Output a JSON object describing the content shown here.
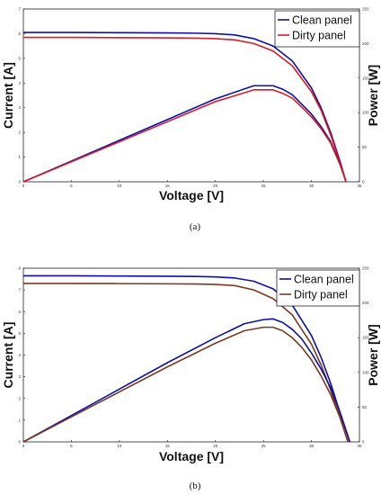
{
  "chart_data": [
    {
      "type": "line",
      "subplot_label": "(a)",
      "xlabel": "Voltage [V]",
      "ylabel": "Current [A]",
      "y2label": "Power [W]",
      "xlim": [
        0,
        35
      ],
      "ylim": [
        0,
        7
      ],
      "y2lim": [
        0,
        250
      ],
      "xticks": [
        "0",
        "5",
        "10",
        "15",
        "20",
        "25",
        "30",
        "35"
      ],
      "yticks": [
        "0",
        "1",
        "2",
        "3",
        "4",
        "5",
        "6",
        "7"
      ],
      "y2ticks": [
        "0",
        "50",
        "100",
        "150",
        "200",
        "250"
      ],
      "legend_position": "top-right",
      "series": [
        {
          "name": "Clean panel",
          "color": "#1010a0",
          "axis": "left",
          "quantity": "current",
          "x": [
            0,
            5,
            10,
            15,
            18,
            20,
            22,
            24,
            26,
            28,
            30,
            31,
            32,
            33,
            33.6
          ],
          "y": [
            6.05,
            6.05,
            6.04,
            6.03,
            6.02,
            6.0,
            5.95,
            5.8,
            5.5,
            4.9,
            3.8,
            3.0,
            2.0,
            0.8,
            0
          ]
        },
        {
          "name": "Dirty panel",
          "color": "#d81b2a",
          "axis": "left",
          "quantity": "current",
          "x": [
            0,
            5,
            10,
            15,
            18,
            20,
            22,
            24,
            26,
            28,
            30,
            31,
            32,
            33,
            33.6
          ],
          "y": [
            5.85,
            5.85,
            5.84,
            5.83,
            5.82,
            5.8,
            5.75,
            5.6,
            5.3,
            4.7,
            3.65,
            2.9,
            1.9,
            0.75,
            0
          ]
        },
        {
          "name": "Clean panel",
          "color": "#1010a0",
          "axis": "right",
          "quantity": "power",
          "x": [
            0,
            5,
            10,
            15,
            20,
            24,
            26,
            27,
            28,
            29,
            30,
            31,
            32,
            33,
            33.6
          ],
          "y": [
            0,
            30,
            60,
            90,
            120,
            139,
            139,
            134,
            126,
            112,
            98,
            80,
            58,
            25,
            0
          ]
        },
        {
          "name": "Dirty panel",
          "color": "#d81b2a",
          "axis": "right",
          "quantity": "power",
          "x": [
            0,
            5,
            10,
            15,
            20,
            24,
            26,
            27,
            28,
            29,
            30,
            31,
            32,
            33,
            33.6
          ],
          "y": [
            0,
            29,
            58,
            87,
            116,
            133,
            133,
            128,
            121,
            108,
            94,
            77,
            56,
            24,
            0
          ]
        }
      ]
    },
    {
      "type": "line",
      "subplot_label": "(b)",
      "xlabel": "Voltage [V]",
      "ylabel": "Current [A]",
      "y2label": "Power [W]",
      "xlim": [
        0,
        35
      ],
      "ylim": [
        0,
        8
      ],
      "y2lim": [
        0,
        250
      ],
      "xticks": [
        "0",
        "5",
        "10",
        "15",
        "20",
        "25",
        "30",
        "35"
      ],
      "yticks": [
        "0",
        "1",
        "2",
        "3",
        "4",
        "5",
        "6",
        "7",
        "8"
      ],
      "y2ticks": [
        "0",
        "50",
        "100",
        "150",
        "200",
        "250"
      ],
      "legend_position": "top-right",
      "series": [
        {
          "name": "Clean panel",
          "color": "#1010a0",
          "axis": "left",
          "quantity": "current",
          "x": [
            0,
            5,
            10,
            15,
            18,
            20,
            22,
            24,
            26,
            28,
            30,
            31,
            32,
            33,
            34
          ],
          "y": [
            7.65,
            7.65,
            7.64,
            7.63,
            7.62,
            7.6,
            7.55,
            7.4,
            7.05,
            6.3,
            4.9,
            3.9,
            2.7,
            1.3,
            0
          ]
        },
        {
          "name": "Dirty panel",
          "color": "#7a3a22",
          "axis": "left",
          "quantity": "current",
          "x": [
            0,
            5,
            10,
            15,
            18,
            20,
            22,
            24,
            26,
            28,
            30,
            31,
            32,
            33,
            33.8
          ],
          "y": [
            7.3,
            7.3,
            7.29,
            7.28,
            7.27,
            7.25,
            7.2,
            7.0,
            6.6,
            5.85,
            4.5,
            3.55,
            2.4,
            1.1,
            0
          ]
        },
        {
          "name": "Clean panel",
          "color": "#1010a0",
          "axis": "right",
          "quantity": "power",
          "x": [
            0,
            5,
            10,
            15,
            20,
            23,
            25,
            26,
            27,
            28,
            29,
            30,
            31,
            32,
            33,
            34
          ],
          "y": [
            0,
            38,
            76,
            114,
            150,
            170,
            176,
            177,
            172,
            162,
            148,
            128,
            105,
            78,
            42,
            0
          ]
        },
        {
          "name": "Dirty panel",
          "color": "#7a3a22",
          "axis": "right",
          "quantity": "power",
          "x": [
            0,
            5,
            10,
            15,
            20,
            23,
            25,
            26,
            27,
            28,
            29,
            30,
            31,
            32,
            33,
            33.8
          ],
          "y": [
            0,
            36,
            72,
            108,
            142,
            160,
            165,
            165,
            160,
            150,
            136,
            118,
            95,
            68,
            34,
            0
          ]
        }
      ]
    }
  ]
}
